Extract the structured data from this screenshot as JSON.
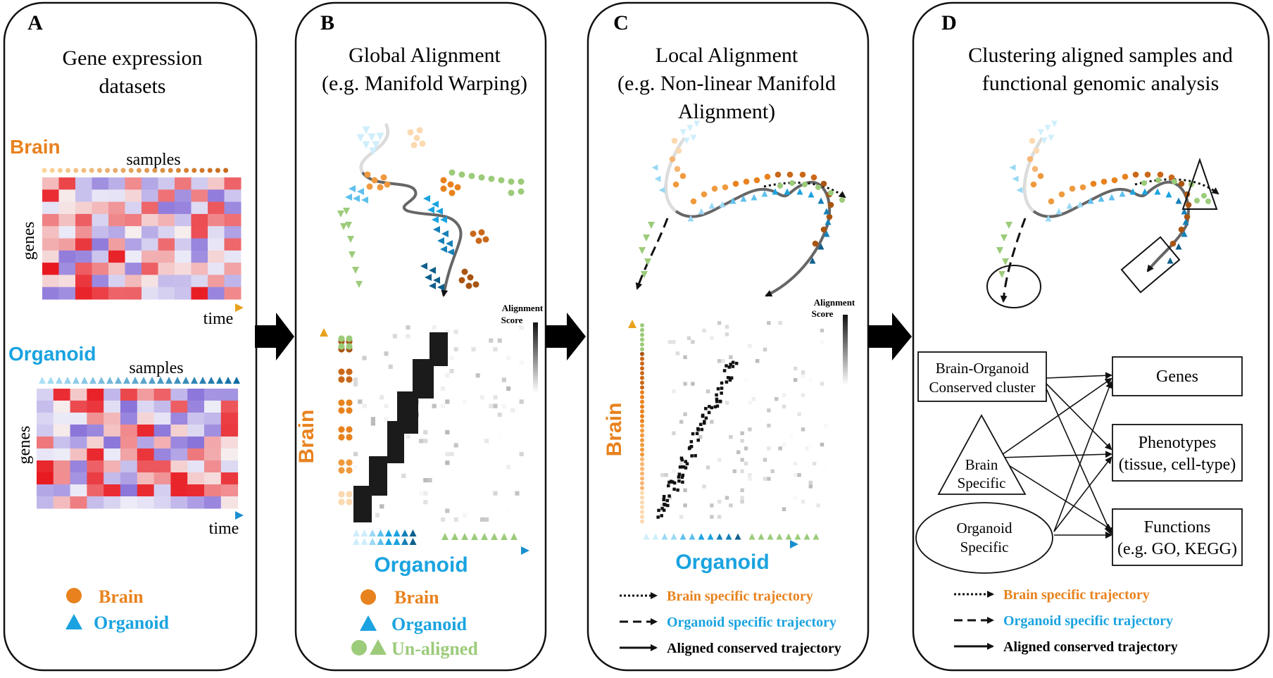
{
  "panels": [
    {
      "letter": "A",
      "title_lines": [
        "Gene expression",
        "datasets"
      ]
    },
    {
      "letter": "B",
      "title_lines": [
        "Global Alignment",
        "(e.g. Manifold Warping)"
      ]
    },
    {
      "letter": "C",
      "title_lines": [
        "Local Alignment",
        "(e.g. Non-linear Manifold",
        "Alignment)"
      ]
    },
    {
      "letter": "D",
      "title_lines": [
        "Clustering aligned samples and",
        "functional genomic analysis"
      ]
    }
  ],
  "panel_a": {
    "brain_label": "Brain",
    "organoid_label": "Organoid",
    "samples_label": "samples",
    "genes_label": "genes",
    "time_label": "time",
    "legend": [
      {
        "symbol": "circle",
        "label": "Brain"
      },
      {
        "symbol": "triangle",
        "label": "Organoid"
      }
    ]
  },
  "panel_b": {
    "axis_y": "Brain",
    "axis_x": "Organoid",
    "score_label_1": "Alignment",
    "score_label_2": "Score",
    "legend": [
      {
        "symbol": "circle",
        "label": "Brain"
      },
      {
        "symbol": "triangle",
        "label": "Organoid"
      },
      {
        "symbol": "both",
        "label": "Un-aligned"
      }
    ]
  },
  "panel_c": {
    "axis_y": "Brain",
    "axis_x": "Organoid",
    "score_label_1": "Alignment",
    "score_label_2": "Score",
    "legend": [
      {
        "style": "dotted",
        "label": "Brain specific trajectory"
      },
      {
        "style": "dashed",
        "label": "Organoid specific trajectory"
      },
      {
        "style": "solid",
        "label": "Aligned conserved trajectory"
      }
    ]
  },
  "panel_d": {
    "box_conserved_1": "Brain-Organoid",
    "box_conserved_2": "Conserved cluster",
    "tri_label_1": "Brain",
    "tri_label_2": "Specific",
    "ell_label_1": "Organoid",
    "ell_label_2": "Specific",
    "out_genes": "Genes",
    "out_pheno_1": "Phenotypes",
    "out_pheno_2": "(tissue, cell-type)",
    "out_func_1": "Functions",
    "out_func_2": "(e.g. GO, KEGG)",
    "legend": [
      {
        "style": "dotted",
        "label": "Brain specific trajectory"
      },
      {
        "style": "dashed",
        "label": "Organoid specific trajectory"
      },
      {
        "style": "solid",
        "label": "Aligned conserved trajectory"
      }
    ]
  },
  "colors": {
    "brain": "#e8821e",
    "organoid": "#1aa3e0",
    "unaligned": "#9ccb7a",
    "heat_hot": "#e8141b",
    "heat_cold": "#8a73d9"
  }
}
